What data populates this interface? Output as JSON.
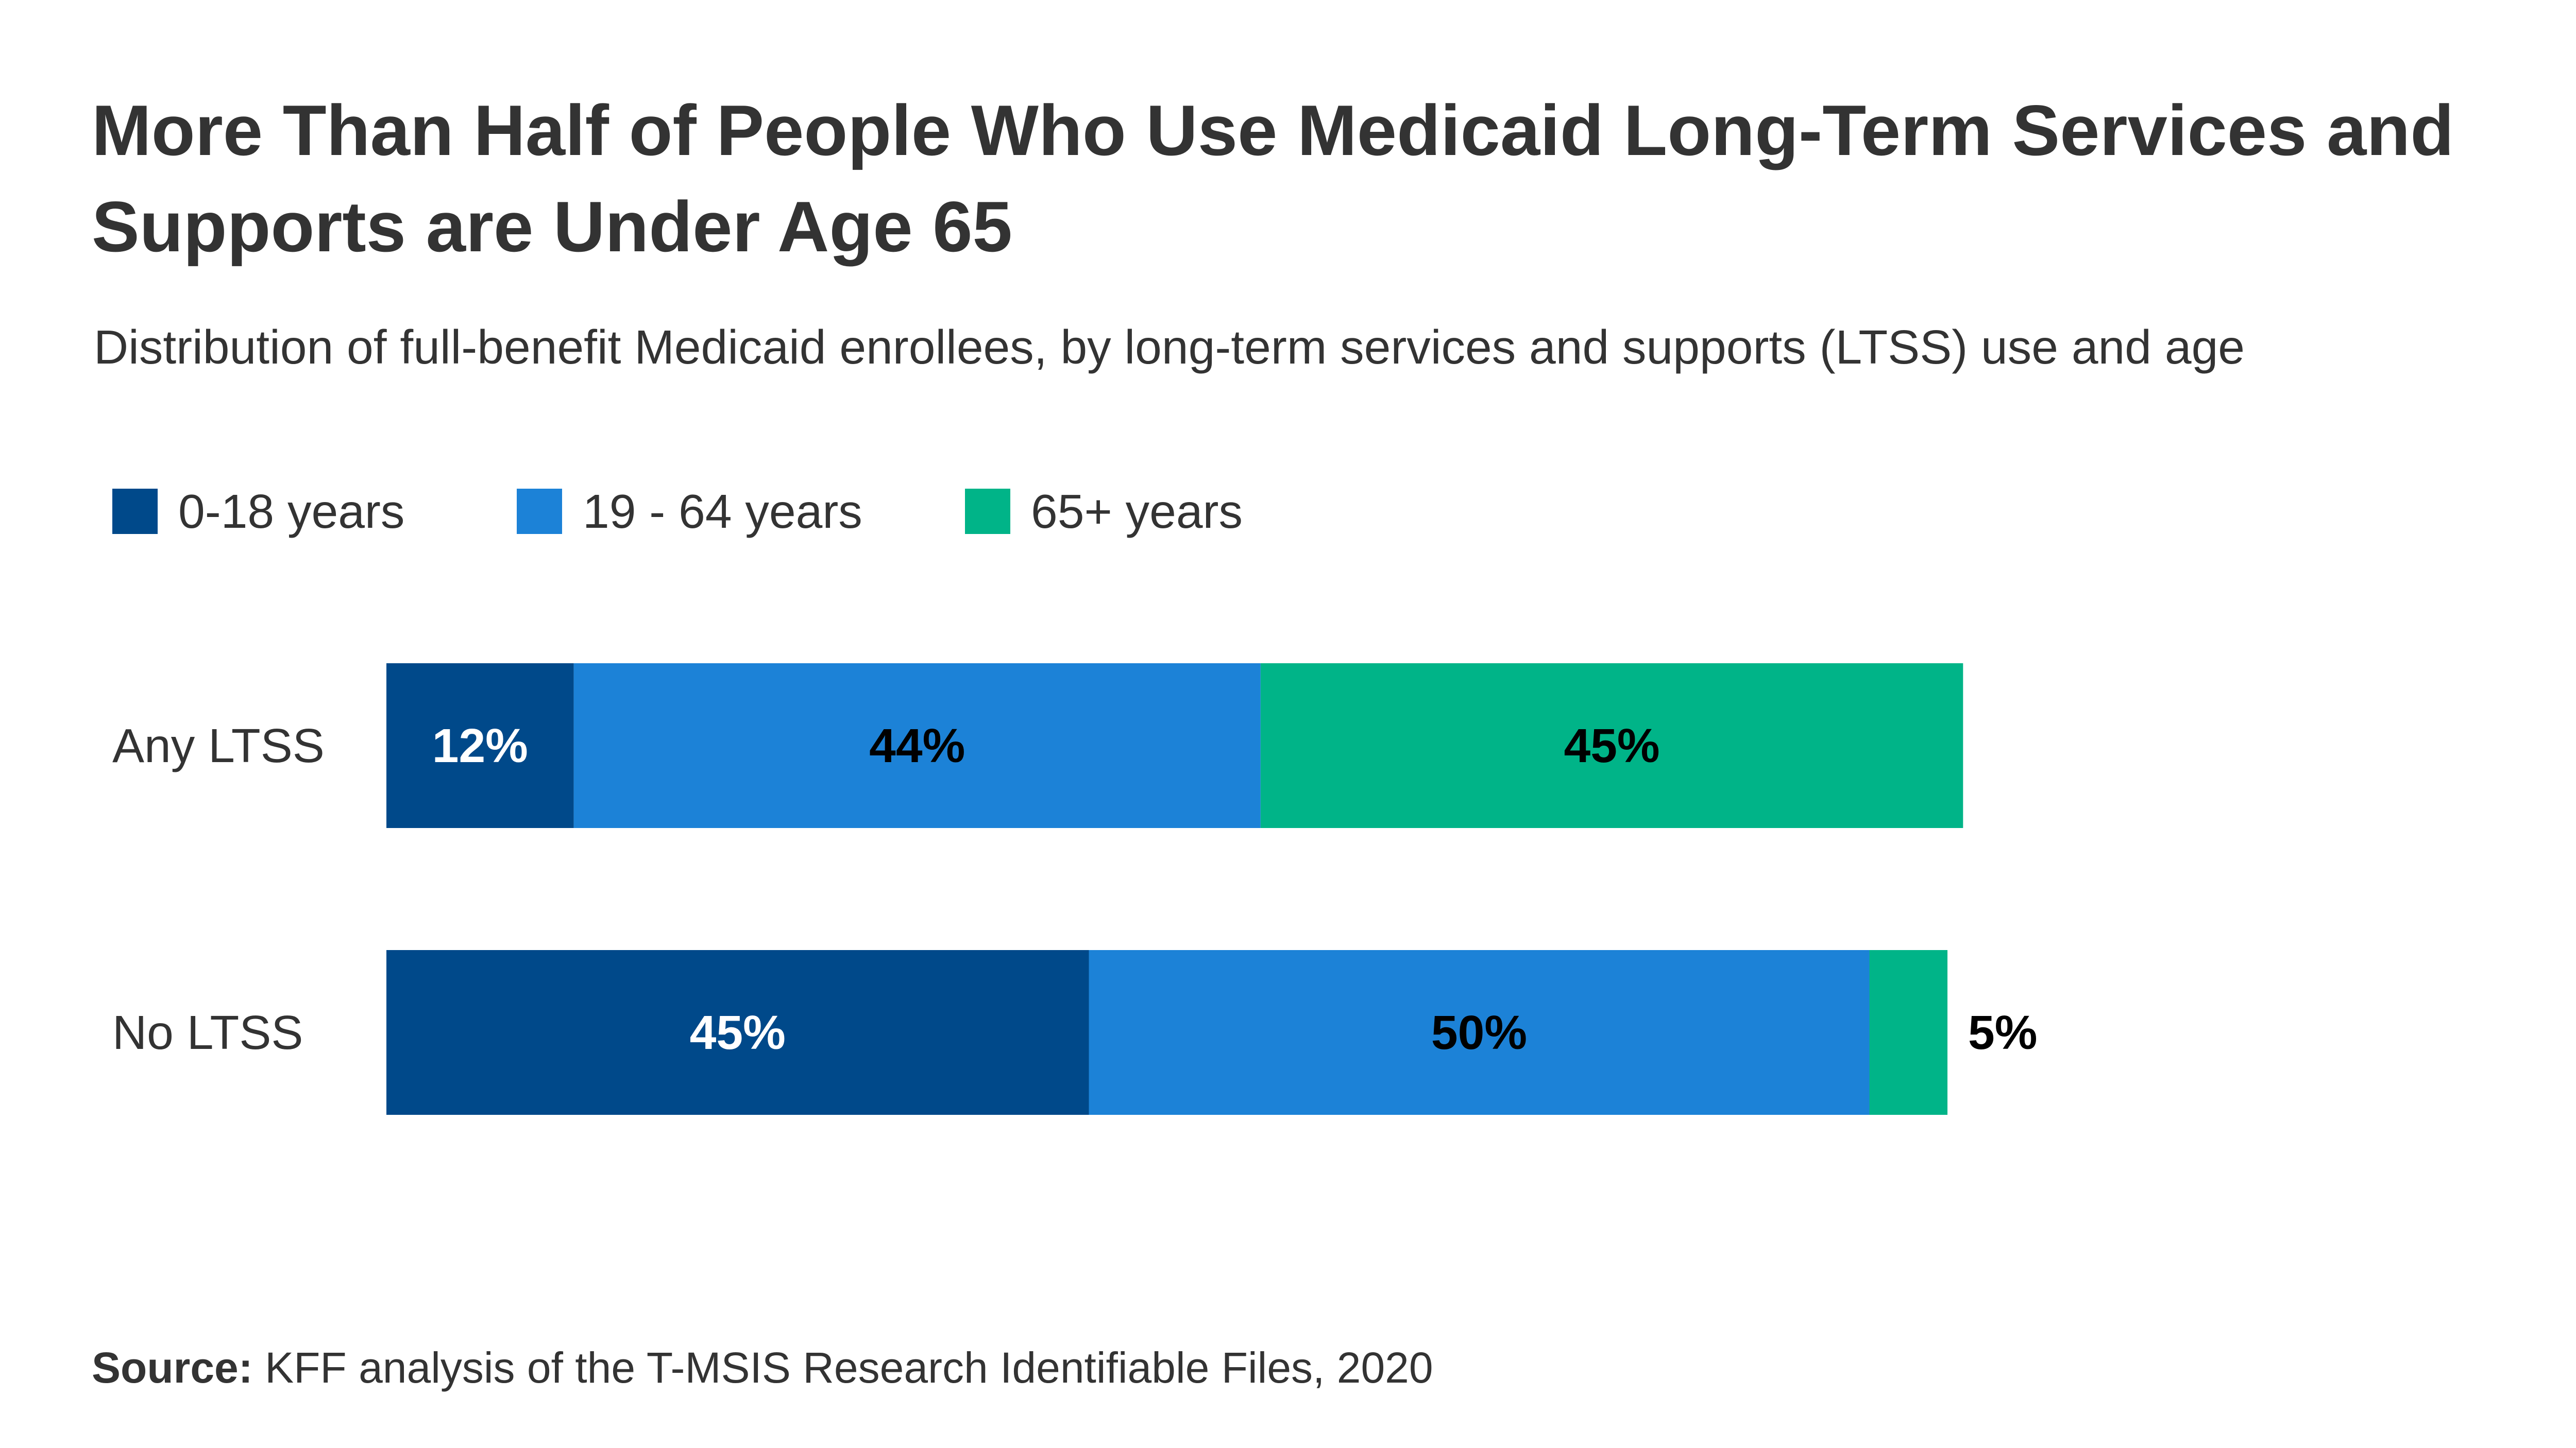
{
  "chart_data": {
    "type": "bar",
    "orientation": "horizontal",
    "stacked": true,
    "title": "More Than Half of People Who Use Medicaid Long-Term Services and Supports are Under Age 65",
    "subtitle": "Distribution of full-benefit Medicaid enrollees, by long-term services and supports (LTSS) use and age",
    "categories": [
      "Any LTSS",
      "No LTSS"
    ],
    "series": [
      {
        "name": "0-18 years",
        "values": [
          12,
          45
        ],
        "labels": [
          "12%",
          "45%"
        ],
        "color": "#00498A",
        "label_color": "#FFFFFF"
      },
      {
        "name": "19 - 64 years",
        "values": [
          44,
          50
        ],
        "labels": [
          "44%",
          "50%"
        ],
        "color": "#1C82D7",
        "label_color": "#000000"
      },
      {
        "name": "65+ years",
        "values": [
          45,
          5
        ],
        "labels": [
          "45%",
          "5%"
        ],
        "color": "#00B488",
        "label_color": "#000000"
      }
    ],
    "legend_position": "top-left",
    "grid": false,
    "xlim": [
      0,
      100
    ],
    "source_prefix": "Source:",
    "source_text": " KFF analysis of the T-MSIS Research Identifiable Files, 2020"
  }
}
